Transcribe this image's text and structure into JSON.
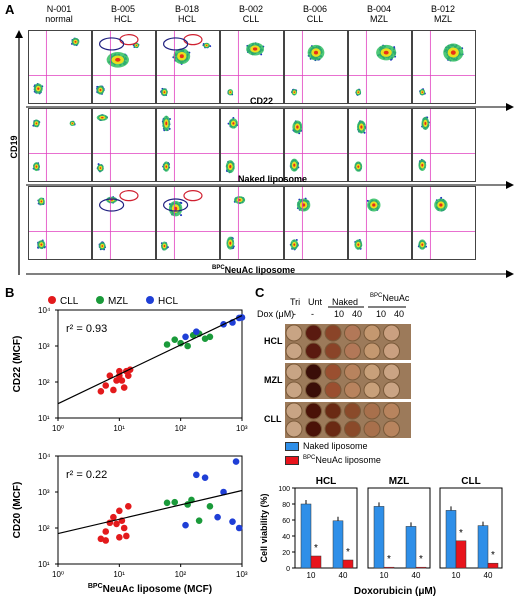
{
  "panels": {
    "a": "A",
    "b": "B",
    "c": "C"
  },
  "flow": {
    "samples": [
      {
        "id": "N-001",
        "type": "normal"
      },
      {
        "id": "B-005",
        "type": "HCL"
      },
      {
        "id": "B-018",
        "type": "HCL"
      },
      {
        "id": "B-002",
        "type": "CLL"
      },
      {
        "id": "B-006",
        "type": "CLL"
      },
      {
        "id": "B-004",
        "type": "MZL"
      },
      {
        "id": "B-012",
        "type": "MZL"
      }
    ],
    "y_axis": "CD19",
    "row_labels": [
      "CD22",
      "Naked liposome",
      "NeuAc liposome"
    ],
    "row3_sup": "BPC"
  },
  "scatter": {
    "legend": [
      "CLL",
      "MZL",
      "HCL"
    ],
    "colors": {
      "CLL": "#e31a1c",
      "MZL": "#1a9a3a",
      "HCL": "#1f3fd6"
    },
    "top": {
      "ylabel": "CD22 (MCF)",
      "r2": "r² = 0.93"
    },
    "bottom": {
      "ylabel": "CD20 (MCF)",
      "r2": "r² = 0.22"
    },
    "xlabel_sup": "BPC",
    "xlabel": "NeuAc liposome (MCF)",
    "xticks": [
      "10⁰",
      "10¹",
      "10²",
      "10³"
    ],
    "yticks": [
      "10¹",
      "10²",
      "10³",
      "10⁴"
    ]
  },
  "chart_data": [
    {
      "type": "scatter",
      "title": "",
      "xlabel": "BPCNeuAc liposome (MCF)",
      "ylabel": "CD22 (MCF)",
      "xscale": "log",
      "yscale": "log",
      "xlim": [
        1,
        1000
      ],
      "ylim": [
        10,
        10000
      ],
      "series": [
        {
          "name": "CLL",
          "points": [
            [
              5,
              55
            ],
            [
              6,
              80
            ],
            [
              7,
              150
            ],
            [
              8,
              60
            ],
            [
              9,
              110
            ],
            [
              10,
              200
            ],
            [
              11,
              110
            ],
            [
              12,
              70
            ],
            [
              13,
              200
            ],
            [
              14,
              150
            ],
            [
              15,
              220
            ],
            [
              10,
              150
            ]
          ]
        },
        {
          "name": "MZL",
          "points": [
            [
              60,
              1100
            ],
            [
              80,
              1500
            ],
            [
              100,
              1200
            ],
            [
              130,
              1000
            ],
            [
              160,
              2000
            ],
            [
              200,
              2200
            ],
            [
              250,
              1600
            ],
            [
              300,
              1800
            ]
          ]
        },
        {
          "name": "HCL",
          "points": [
            [
              120,
              1800
            ],
            [
              180,
              2500
            ],
            [
              500,
              4000
            ],
            [
              700,
              4500
            ],
            [
              900,
              6000
            ],
            [
              1000,
              6200
            ]
          ]
        }
      ],
      "annotation": "r² = 0.93"
    },
    {
      "type": "scatter",
      "title": "",
      "xlabel": "BPCNeuAc liposome (MCF)",
      "ylabel": "CD20 (MCF)",
      "xscale": "log",
      "yscale": "log",
      "xlim": [
        1,
        1000
      ],
      "ylim": [
        10,
        10000
      ],
      "series": [
        {
          "name": "CLL",
          "points": [
            [
              5,
              50
            ],
            [
              6,
              80
            ],
            [
              7,
              140
            ],
            [
              8,
              200
            ],
            [
              9,
              130
            ],
            [
              10,
              300
            ],
            [
              11,
              160
            ],
            [
              12,
              100
            ],
            [
              13,
              60
            ],
            [
              14,
              400
            ],
            [
              6,
              45
            ],
            [
              10,
              55
            ]
          ]
        },
        {
          "name": "MZL",
          "points": [
            [
              60,
              500
            ],
            [
              80,
              520
            ],
            [
              130,
              450
            ],
            [
              200,
              160
            ],
            [
              300,
              400
            ],
            [
              150,
              600
            ]
          ]
        },
        {
          "name": "HCL",
          "points": [
            [
              120,
              120
            ],
            [
              180,
              3000
            ],
            [
              250,
              2500
            ],
            [
              400,
              200
            ],
            [
              500,
              1000
            ],
            [
              700,
              150
            ],
            [
              800,
              7000
            ],
            [
              900,
              100
            ]
          ]
        }
      ],
      "annotation": "r² = 0.22"
    },
    {
      "type": "bar",
      "title": "HCL",
      "xlabel": "Doxorubicin (μM)",
      "ylabel": "Cell viability (%)",
      "categories": [
        "10",
        "40"
      ],
      "ylim": [
        0,
        100
      ],
      "series": [
        {
          "name": "Naked liposome",
          "values": [
            80,
            59
          ]
        },
        {
          "name": "BPCNeuAc liposome",
          "values": [
            15,
            10
          ]
        }
      ]
    },
    {
      "type": "bar",
      "title": "MZL",
      "xlabel": "Doxorubicin (μM)",
      "categories": [
        "10",
        "40"
      ],
      "ylim": [
        0,
        100
      ],
      "series": [
        {
          "name": "Naked liposome",
          "values": [
            77,
            52
          ]
        },
        {
          "name": "BPCNeuAc liposome",
          "values": [
            1,
            1
          ]
        }
      ]
    },
    {
      "type": "bar",
      "title": "CLL",
      "xlabel": "Doxorubicin (μM)",
      "categories": [
        "10",
        "40"
      ],
      "ylim": [
        0,
        100
      ],
      "series": [
        {
          "name": "Naked liposome",
          "values": [
            72,
            53
          ]
        },
        {
          "name": "BPCNeuAc liposome",
          "values": [
            34,
            6
          ]
        }
      ]
    }
  ],
  "wells": {
    "headers": [
      "Tri",
      "Unt",
      "Naked",
      "NeuAc"
    ],
    "header_sup": "BPC",
    "dox_label": "Dox (μM)",
    "dox_vals": [
      "-",
      "-",
      "10",
      "40",
      "10",
      "40"
    ],
    "rows": [
      "HCL",
      "MZL",
      "CLL"
    ]
  },
  "bars": {
    "legend": [
      "Naked liposome",
      "NeuAc liposome"
    ],
    "legend_sup": "BPC",
    "colors": {
      "naked": "#2f8fe8",
      "bpc": "#e8141c"
    },
    "ylabel": "Cell viability (%)",
    "xlabel": "Doxorubicin (μM)",
    "yticks": [
      "0",
      "20",
      "40",
      "60",
      "80",
      "100"
    ],
    "star": "*"
  }
}
